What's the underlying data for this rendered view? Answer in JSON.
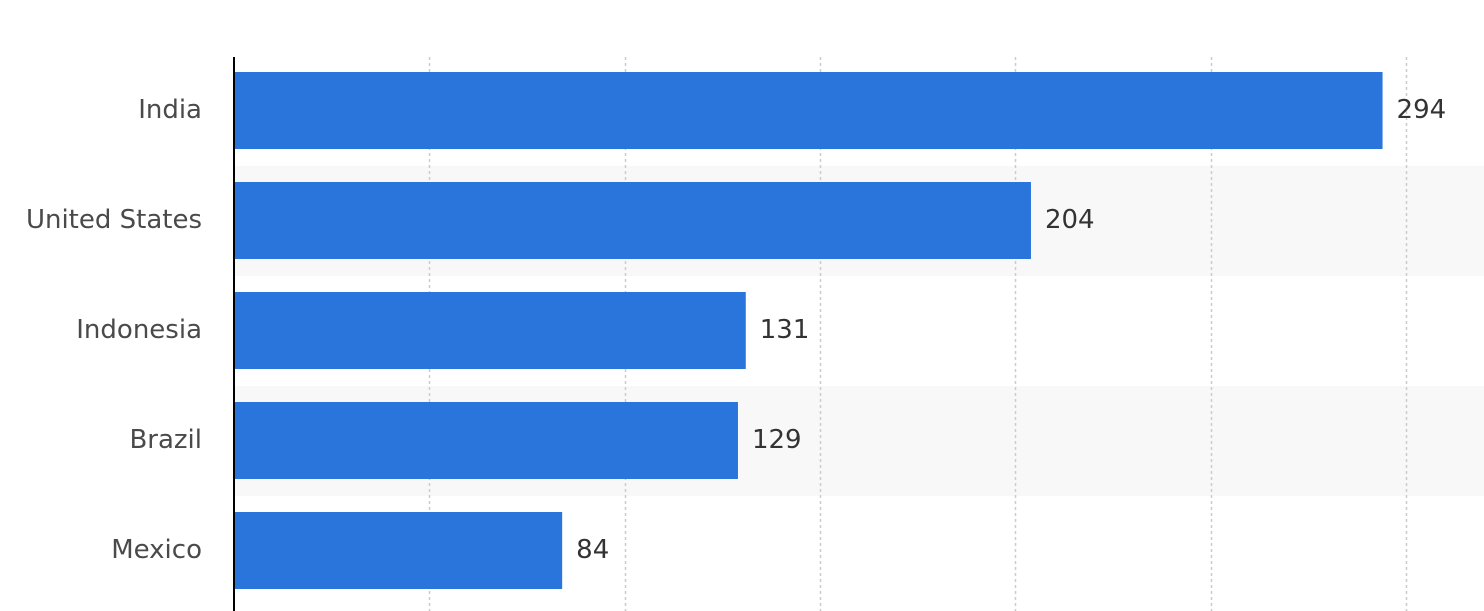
{
  "chart_data": {
    "type": "bar",
    "orientation": "horizontal",
    "categories": [
      "India",
      "United States",
      "Indonesia",
      "Brazil",
      "Mexico"
    ],
    "values": [
      294,
      204,
      131,
      129,
      84
    ],
    "title": "",
    "xlabel": "",
    "ylabel": "",
    "xlim": [
      0,
      300
    ],
    "grid": true,
    "legend": "none",
    "data_labels": true,
    "colors": {
      "bar": "#2975dc",
      "band": "#f8f8f8",
      "grid": "#cccccc",
      "axis": "#000000"
    }
  }
}
